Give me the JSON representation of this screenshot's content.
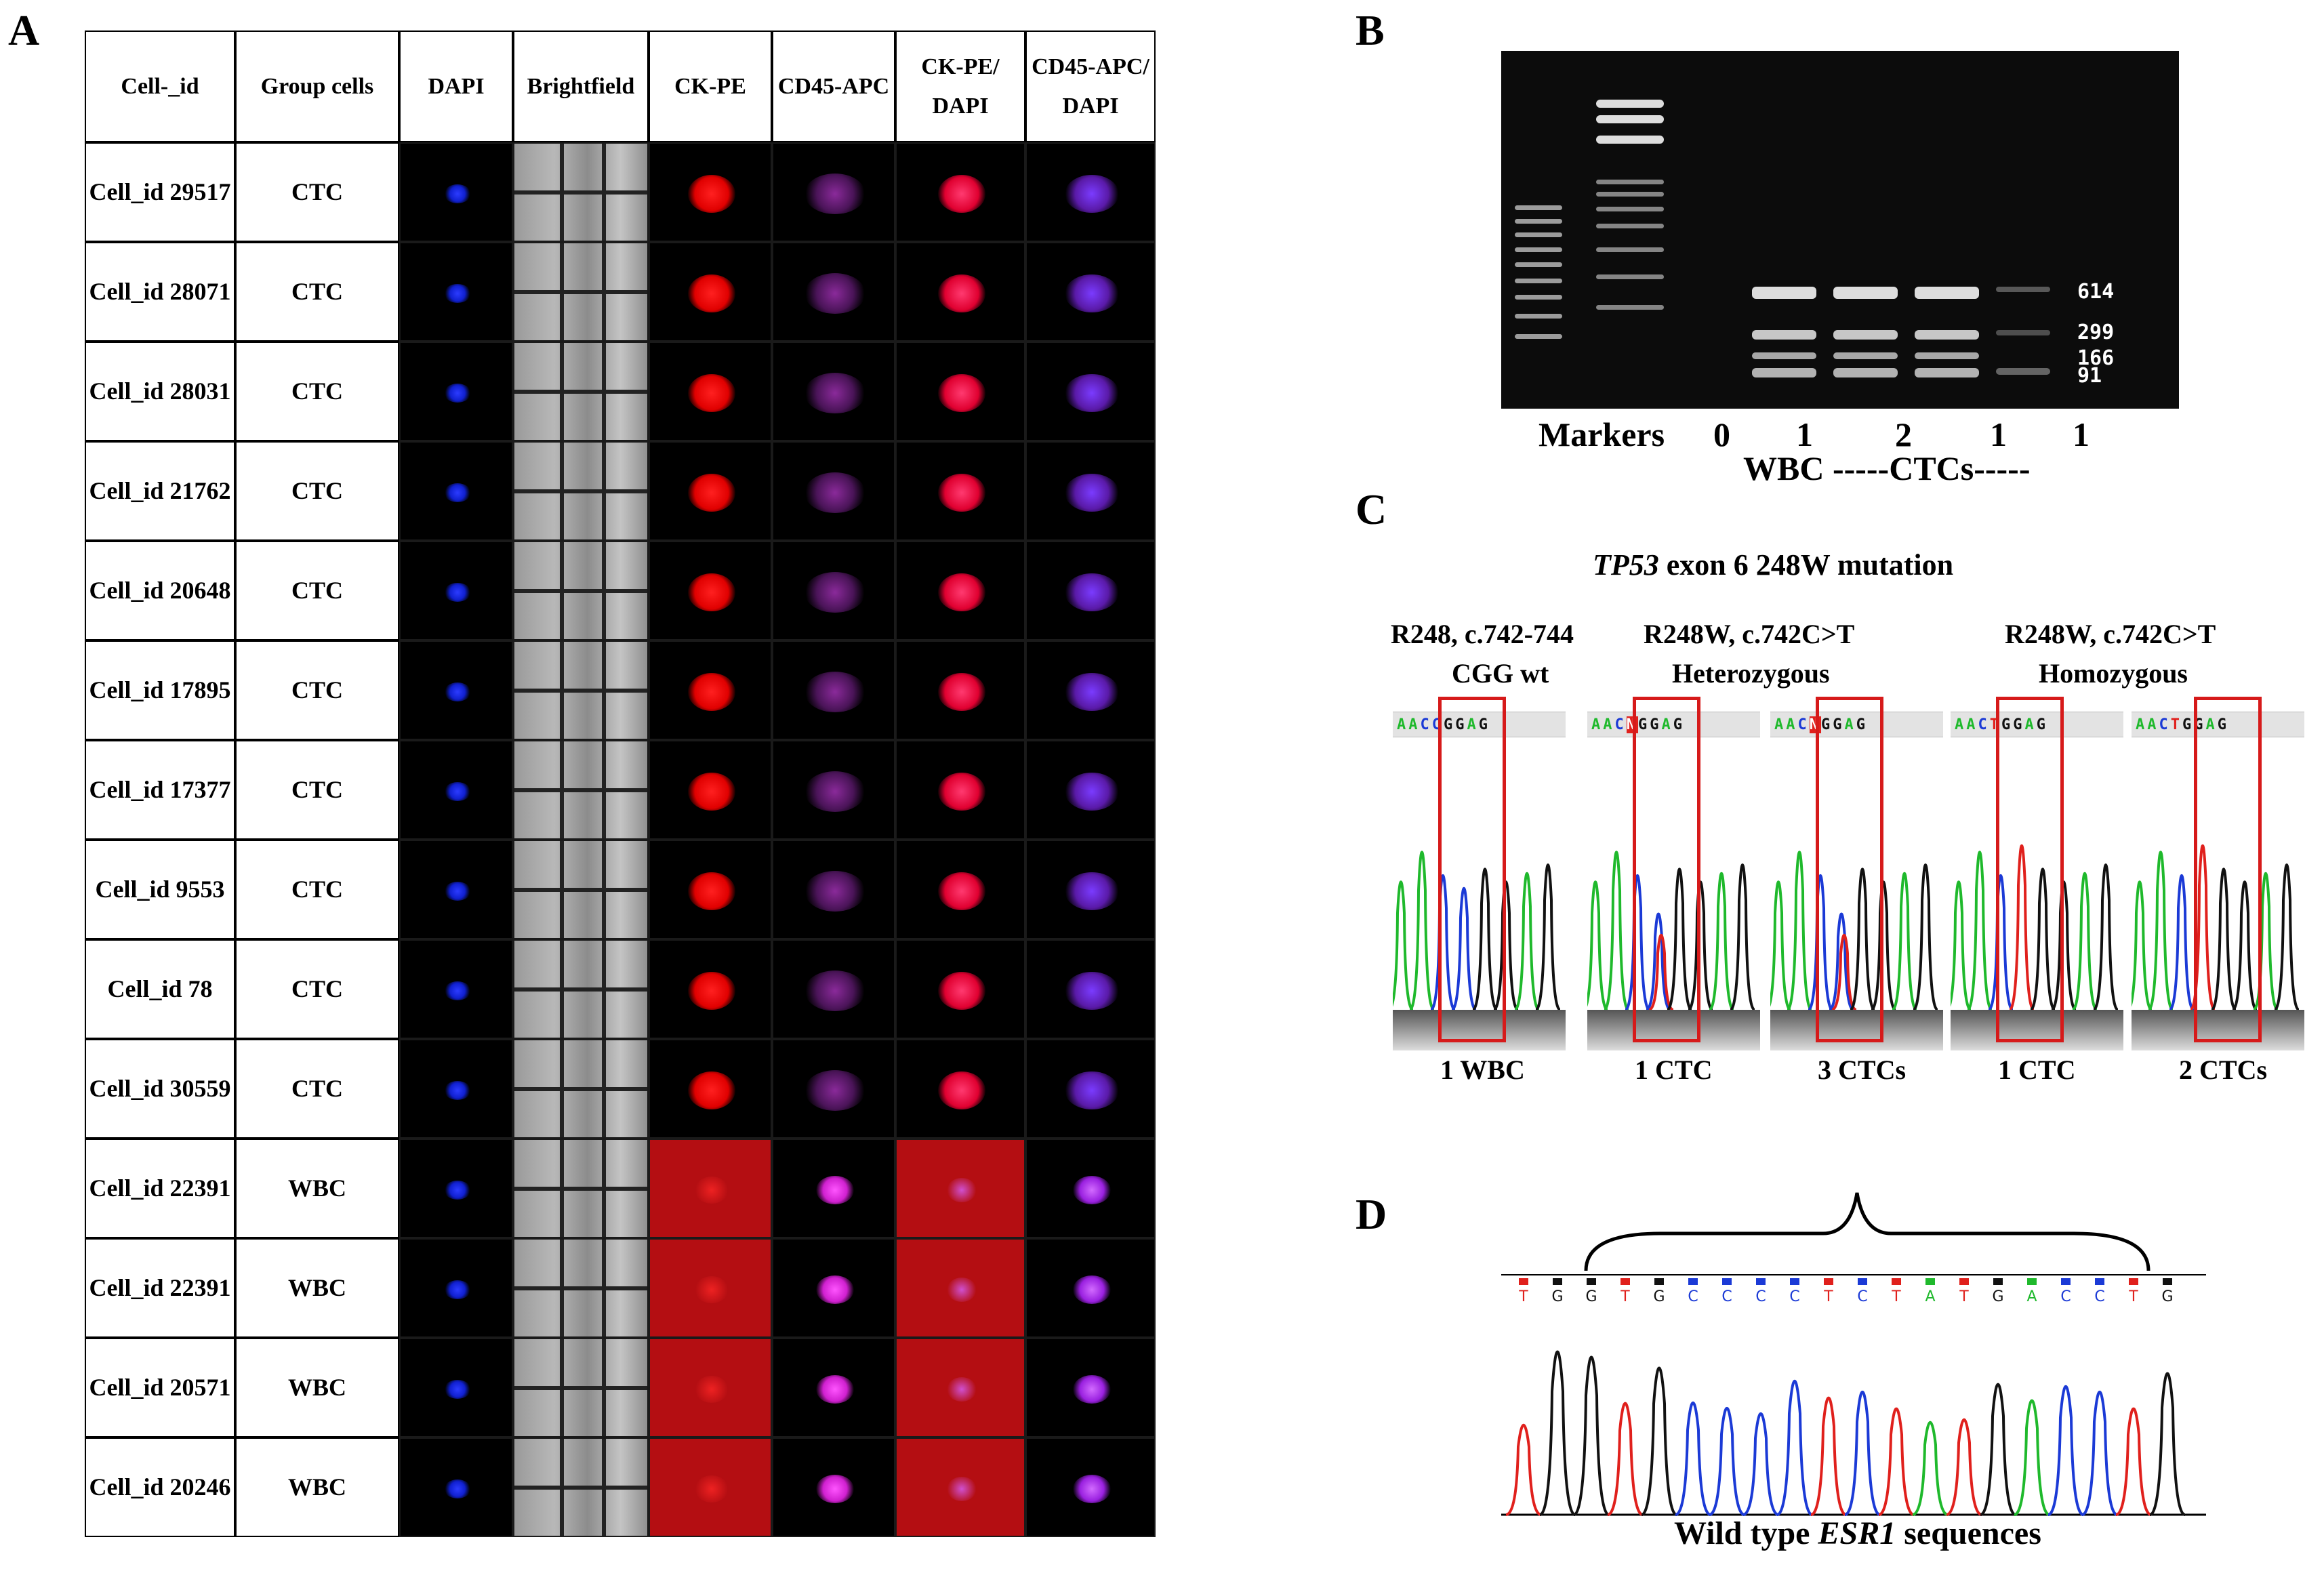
{
  "panels": {
    "a": "A",
    "b": "B",
    "c": "C",
    "d": "D"
  },
  "panel_a": {
    "headers": [
      "Cell-_id",
      "Group cells",
      "DAPI",
      "Brightfield",
      "CK-PE",
      "CD45-APC",
      "CK-PE/ DAPI",
      "CD45-APC/ DAPI"
    ],
    "rows": [
      {
        "id": "Cell_id 29517",
        "group": "CTC"
      },
      {
        "id": "Cell_id 28071",
        "group": "CTC"
      },
      {
        "id": "Cell_id 28031",
        "group": "CTC"
      },
      {
        "id": "Cell_id 21762",
        "group": "CTC"
      },
      {
        "id": "Cell_id 20648",
        "group": "CTC"
      },
      {
        "id": "Cell_id 17895",
        "group": "CTC"
      },
      {
        "id": "Cell_id 17377",
        "group": "CTC"
      },
      {
        "id": "Cell_id 9553",
        "group": "CTC"
      },
      {
        "id": "Cell_id 78",
        "group": "CTC"
      },
      {
        "id": "Cell_id 30559",
        "group": "CTC"
      },
      {
        "id": "Cell_id 22391",
        "group": "WBC"
      },
      {
        "id": "Cell_id 22391",
        "group": "WBC"
      },
      {
        "id": "Cell_id 20571",
        "group": "WBC"
      },
      {
        "id": "Cell_id 20246",
        "group": "WBC"
      }
    ]
  },
  "panel_b": {
    "band_sizes": [
      "614",
      "299",
      "166",
      "91"
    ],
    "lane_labels": [
      "Markers",
      "0",
      "1",
      "2",
      "1",
      "1"
    ],
    "group_label": "WBC -----CTCs-----"
  },
  "panel_c": {
    "title_gene": "TP53",
    "title_rest": " exon 6 248W mutation",
    "headers": [
      {
        "line1": "R248, c.742-744",
        "line2": "CGG  wt"
      },
      {
        "line1": "R248W, c.742C>T",
        "line2": "Heterozygous"
      },
      {
        "line1": "R248W, c.742C>T",
        "line2": "Homozygous"
      }
    ],
    "traces": [
      {
        "seq": "AACCGGAG",
        "label": "1 WBC"
      },
      {
        "seq": "AACNGGAG",
        "label": "1 CTC"
      },
      {
        "seq": "AACNGGAG",
        "label": "3 CTCs"
      },
      {
        "seq": "AACTGGAG",
        "label": "1 CTC"
      },
      {
        "seq": "AACTGGAG",
        "label": "2 CTCs"
      }
    ]
  },
  "panel_d": {
    "bases": "TGGTGCCCCTCTATGACCTG",
    "caption_pre": "Wild type ",
    "caption_gene": "ESR1",
    "caption_post": " sequences"
  },
  "colors": {
    "A": "#1fb92c",
    "C": "#1b3ad6",
    "G": "#111111",
    "T": "#e0201c",
    "CK-PE": "#ff1010",
    "DAPI": "#1020ff"
  }
}
